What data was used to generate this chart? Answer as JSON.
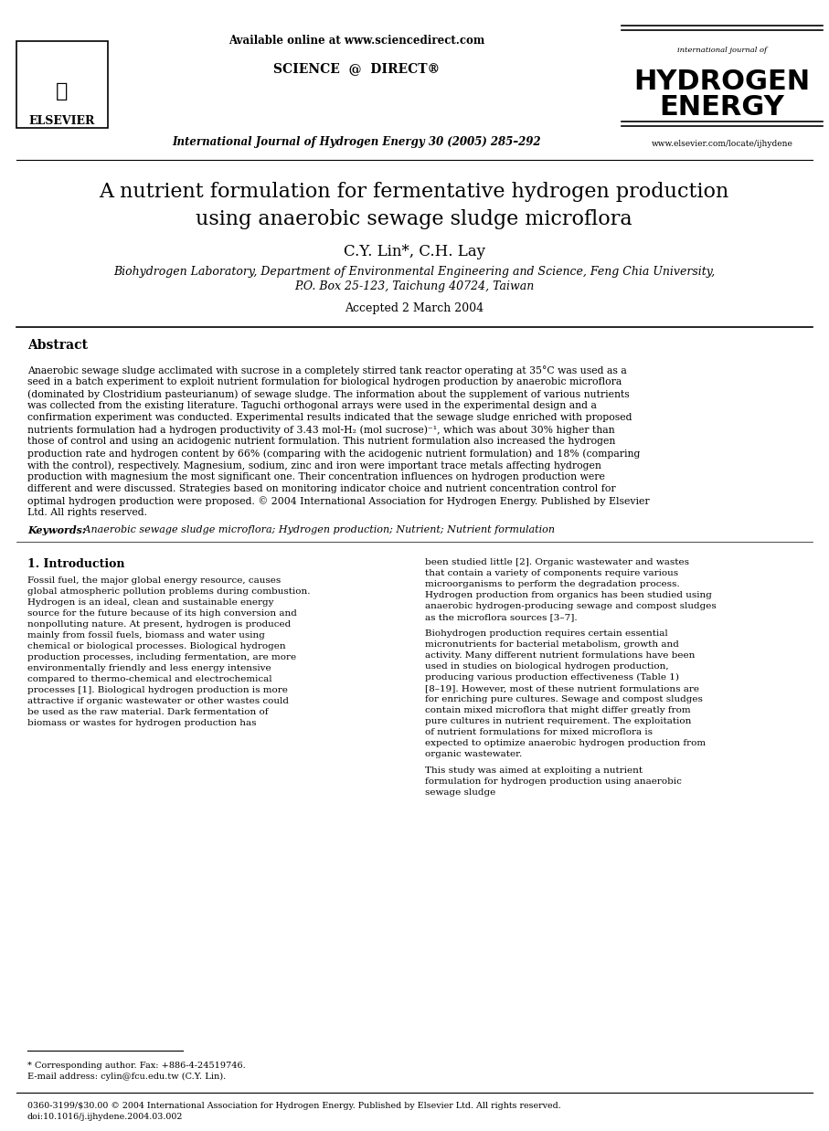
{
  "bg_color": "#ffffff",
  "header": {
    "available_online": "Available online at www.sciencedirect.com",
    "journal_line": "International Journal of Hydrogen Energy 30 (2005) 285–292",
    "website": "www.elsevier.com/locate/ijhydene",
    "elsevier_text": "ELSEVIER",
    "hydrogen_energy_line1": "international journal of",
    "hydrogen_energy_line2": "HYDROGEN",
    "hydrogen_energy_line3": "ENERGY"
  },
  "title_line1": "A nutrient formulation for fermentative hydrogen production",
  "title_line2": "using anaerobic sewage sludge microflora",
  "authors": "C.Y. Lin*, C.H. Lay",
  "affiliation_line1": "Biohydrogen Laboratory, Department of Environmental Engineering and Science, Feng Chia University,",
  "affiliation_line2": "P.O. Box 25-123, Taichung 40724, Taiwan",
  "accepted": "Accepted 2 March 2004",
  "abstract_title": "Abstract",
  "abstract_text": "Anaerobic sewage sludge acclimated with sucrose in a completely stirred tank reactor operating at 35°C was used as a seed in a batch experiment to exploit nutrient formulation for biological hydrogen production by anaerobic microflora (dominated by Clostridium pasteurianum) of sewage sludge. The information about the supplement of various nutrients was collected from the existing literature. Taguchi orthogonal arrays were used in the experimental design and a confirmation experiment was conducted. Experimental results indicated that the sewage sludge enriched with proposed nutrients formulation had a hydrogen productivity of 3.43 mol-H₂ (mol sucrose)⁻¹, which was about 30% higher than those of control and using an acidogenic nutrient formulation. This nutrient formulation also increased the hydrogen production rate and hydrogen content by 66% (comparing with the acidogenic nutrient formulation) and 18% (comparing with the control), respectively. Magnesium, sodium, zinc and iron were important trace metals affecting hydrogen production with magnesium the most significant one. Their concentration influences on hydrogen production were different and were discussed. Strategies based on monitoring indicator choice and nutrient concentration control for optimal hydrogen production were proposed.\n© 2004 International Association for Hydrogen Energy. Published by Elsevier Ltd. All rights reserved.",
  "keywords_label": "Keywords:",
  "keywords_text": " Anaerobic sewage sludge microflora; Hydrogen production; Nutrient; Nutrient formulation",
  "section1_title": "1. Introduction",
  "col1_para1": "Fossil fuel, the major global energy resource, causes global atmospheric pollution problems during combustion. Hydrogen is an ideal, clean and sustainable energy source for the future because of its high conversion and nonpolluting nature. At present, hydrogen is produced mainly from fossil fuels, biomass and water using chemical or biological processes. Biological hydrogen production processes, including fermentation, are more environmentally friendly and less energy intensive compared to thermo-chemical and electrochemical processes [1]. Biological hydrogen production is more attractive if organic wastewater or other wastes could be used as the raw material. Dark fermentation of biomass or wastes for hydrogen production has",
  "col2_para1": "been studied little [2]. Organic wastewater and wastes that contain a variety of components require various microorganisms to perform the degradation process. Hydrogen production from organics has been studied using anaerobic hydrogen-producing sewage and compost sludges as the microflora sources [3–7].",
  "col2_para2": "Biohydrogen production requires certain essential micronutrients for bacterial metabolism, growth and activity. Many different nutrient formulations have been used in studies on biological hydrogen production, producing various production effectiveness (Table 1) [8–19]. However, most of these nutrient formulations are for enriching pure cultures. Sewage and compost sludges contain mixed microflora that might differ greatly from pure cultures in nutrient requirement. The exploitation of nutrient formulations for mixed microflora is expected to optimize anaerobic hydrogen production from organic wastewater.",
  "col2_para3": "This study was aimed at exploiting a nutrient formulation for hydrogen production using anaerobic sewage sludge",
  "footnote_star": "* Corresponding author. Fax: +886-4-24519746.",
  "footnote_email": "E-mail address: cylin@fcu.edu.tw (C.Y. Lin).",
  "bottom_line1": "0360-3199/$30.00 © 2004 International Association for Hydrogen Energy. Published by Elsevier Ltd. All rights reserved.",
  "bottom_line2": "doi:10.1016/j.ijhydene.2004.03.002"
}
